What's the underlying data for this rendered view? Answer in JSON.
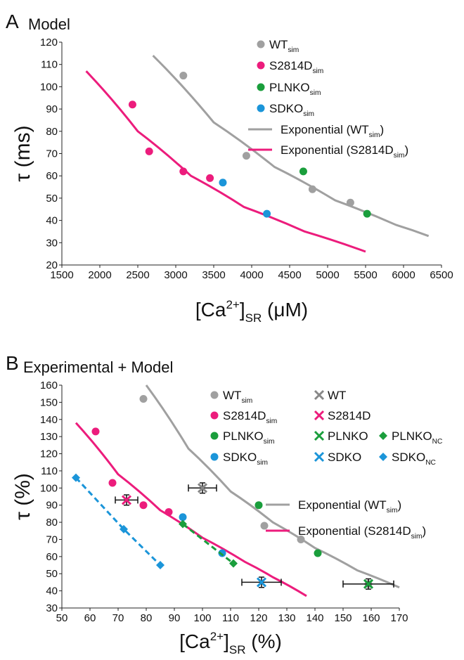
{
  "chart_data": [
    {
      "panel_letter": "A",
      "title": "Model",
      "type": "scatter",
      "xlabel": {
        "main": "[Ca",
        "sup": "2+",
        "close": "]",
        "sub": "SR",
        "unit": " (μM)"
      },
      "ylabel": "τ (ms)",
      "xlim": [
        1500,
        6500
      ],
      "ylim": [
        20,
        120
      ],
      "xticks": [
        "1500",
        "2000",
        "2500",
        "3000",
        "3500",
        "4000",
        "4500",
        "5000",
        "5500",
        "6000",
        "6500"
      ],
      "yticks": [
        "20",
        "30",
        "40",
        "50",
        "60",
        "70",
        "80",
        "90",
        "100",
        "110",
        "120"
      ],
      "legend": [
        {
          "kind": "dot",
          "color": "#a0a0a0",
          "base": "WT",
          "sub": "sim",
          "tail": ""
        },
        {
          "kind": "dot",
          "color": "#ec1c7c",
          "base": "S2814D",
          "sub": "sim",
          "tail": ""
        },
        {
          "kind": "dot",
          "color": "#1a9e3c",
          "base": "PLNKO",
          "sub": "sim",
          "tail": ""
        },
        {
          "kind": "dot",
          "color": "#1b95d9",
          "base": "SDKO",
          "sub": "sim",
          "tail": ""
        },
        {
          "kind": "line",
          "color": "#a0a0a0",
          "base": "Exponential (WT",
          "sub": "sim",
          "tail": ")"
        },
        {
          "kind": "line",
          "color": "#ec1c7c",
          "base": "Exponential (S2814D",
          "sub": "sim",
          "tail": ")"
        }
      ],
      "series": [
        {
          "color": "#a0a0a0",
          "marker": "dot",
          "x": [
            3100,
            3930,
            4800,
            5300
          ],
          "y": [
            105,
            69,
            54,
            48
          ]
        },
        {
          "color": "#ec1c7c",
          "marker": "dot",
          "x": [
            2430,
            2650,
            3100,
            3450
          ],
          "y": [
            92,
            71,
            62,
            59
          ]
        },
        {
          "color": "#1a9e3c",
          "marker": "dot",
          "x": [
            4680,
            5520
          ],
          "y": [
            62,
            43
          ]
        },
        {
          "color": "#1b95d9",
          "marker": "dot",
          "x": [
            3620,
            4200
          ],
          "y": [
            57,
            43
          ]
        }
      ],
      "curves": [
        {
          "color": "#a0a0a0",
          "x": [
            2700,
            3500,
            4300,
            5100,
            5900,
            6330
          ],
          "y": [
            114,
            84,
            64,
            49,
            38,
            33
          ]
        },
        {
          "color": "#ec1c7c",
          "x": [
            1820,
            2500,
            3200,
            3900,
            4700,
            5500
          ],
          "y": [
            107,
            80,
            60,
            46,
            35,
            26
          ]
        }
      ]
    },
    {
      "panel_letter": "B",
      "title": "Experimental + Model",
      "type": "scatter",
      "xlabel": {
        "main": "[Ca",
        "sup": "2+",
        "close": "]",
        "sub": "SR",
        "unit": " (%)"
      },
      "ylabel": "τ (%)",
      "xlim": [
        50,
        170
      ],
      "ylim": [
        30,
        160
      ],
      "xticks": [
        "50",
        "60",
        "70",
        "80",
        "90",
        "100",
        "110",
        "120",
        "130",
        "140",
        "150",
        "160",
        "170"
      ],
      "yticks": [
        "30",
        "40",
        "50",
        "60",
        "70",
        "80",
        "90",
        "100",
        "110",
        "120",
        "130",
        "140",
        "150",
        "160"
      ],
      "legend": [
        {
          "kind": "dot",
          "color": "#a0a0a0",
          "base": "WT",
          "sub": "sim",
          "tail": ""
        },
        {
          "kind": "dot",
          "color": "#ec1c7c",
          "base": "S2814D",
          "sub": "sim",
          "tail": ""
        },
        {
          "kind": "dot",
          "color": "#1a9e3c",
          "base": "PLNKO",
          "sub": "sim",
          "tail": ""
        },
        {
          "kind": "dot",
          "color": "#1b95d9",
          "base": "SDKO",
          "sub": "sim",
          "tail": ""
        },
        {
          "kind": "cross",
          "color": "#888888",
          "base": "WT",
          "sub": "",
          "tail": ""
        },
        {
          "kind": "cross",
          "color": "#ec1c7c",
          "base": "S2814D",
          "sub": "",
          "tail": ""
        },
        {
          "kind": "cross",
          "color": "#1a9e3c",
          "base": "PLNKO",
          "sub": "",
          "tail": ""
        },
        {
          "kind": "cross",
          "color": "#1b95d9",
          "base": "SDKO",
          "sub": "",
          "tail": ""
        },
        {
          "kind": "diamond",
          "color": "#1a9e3c",
          "base": "PLNKO",
          "sub": "NC",
          "tail": ""
        },
        {
          "kind": "diamond",
          "color": "#1b95d9",
          "base": "SDKO",
          "sub": "NC",
          "tail": ""
        },
        {
          "kind": "line",
          "color": "#a0a0a0",
          "base": "Exponential (WT",
          "sub": "sim",
          "tail": ")"
        },
        {
          "kind": "line",
          "color": "#ec1c7c",
          "base": "Exponential (S2814D",
          "sub": "sim",
          "tail": ")"
        }
      ],
      "series": [
        {
          "color": "#a0a0a0",
          "marker": "dot",
          "x": [
            79,
            122,
            135,
            159
          ],
          "y": [
            152,
            78,
            70,
            44
          ]
        },
        {
          "color": "#ec1c7c",
          "marker": "dot",
          "x": [
            62,
            68,
            79,
            88
          ],
          "y": [
            133,
            103,
            90,
            86
          ]
        },
        {
          "color": "#1a9e3c",
          "marker": "dot",
          "x": [
            120,
            141
          ],
          "y": [
            90,
            62
          ]
        },
        {
          "color": "#1b95d9",
          "marker": "dot",
          "x": [
            93,
            107
          ],
          "y": [
            83,
            62
          ]
        },
        {
          "color": "#1b95d9",
          "marker": "diamond",
          "dashed": true,
          "x": [
            55,
            72,
            85
          ],
          "y": [
            106,
            76,
            55
          ]
        },
        {
          "color": "#1a9e3c",
          "marker": "diamond",
          "dashed": true,
          "x": [
            93,
            111
          ],
          "y": [
            79,
            56
          ]
        }
      ],
      "experimental": [
        {
          "color": "#888888",
          "x": 100,
          "y": 100,
          "xerr": 5,
          "yerr": 3
        },
        {
          "color": "#ec1c7c",
          "x": 73,
          "y": 93,
          "xerr": 4,
          "yerr": 3
        },
        {
          "color": "#1b95d9",
          "x": 121,
          "y": 45,
          "xerr": 7,
          "yerr": 3
        },
        {
          "color": "#1a9e3c",
          "x": 159,
          "y": 44,
          "xerr": 9,
          "yerr": 3
        }
      ],
      "curves": [
        {
          "color": "#a0a0a0",
          "x": [
            80,
            95,
            110,
            125,
            140,
            155,
            170
          ],
          "y": [
            160,
            123,
            98,
            80,
            65,
            52,
            42
          ]
        },
        {
          "color": "#ec1c7c",
          "x": [
            55,
            70,
            85,
            100,
            115,
            125,
            137
          ],
          "y": [
            138,
            108,
            87,
            71,
            57,
            48,
            37
          ]
        }
      ]
    }
  ]
}
